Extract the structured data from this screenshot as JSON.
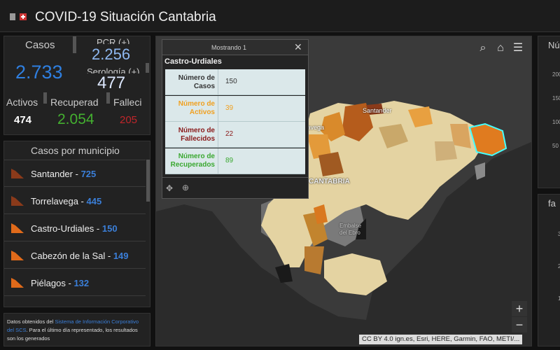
{
  "header": {
    "title": "COVID-19 Situación Cantabria"
  },
  "summary": {
    "casos": {
      "label": "Casos",
      "value": "2.733"
    },
    "pcr": {
      "label": "PCR (+)",
      "value": "2.256"
    },
    "serologia": {
      "label": "Serología (+)",
      "value": "477"
    },
    "activos": {
      "label": "Activos",
      "value": "474"
    },
    "recuperados": {
      "label": "Recuperad",
      "value": "2.054"
    },
    "fallecidos": {
      "label": "Falleci",
      "value": "205"
    }
  },
  "municipios": {
    "title": "Casos por municipio",
    "items": [
      {
        "name": "Santander -",
        "value": "725"
      },
      {
        "name": "Torrelavega -",
        "value": "445"
      },
      {
        "name": "Castro-Urdiales -",
        "value": "150"
      },
      {
        "name": "Cabezón de la Sal -",
        "value": "149"
      },
      {
        "name": "Piélagos -",
        "value": "132"
      }
    ]
  },
  "footer": {
    "text_before": "Datos obtenidos del ",
    "link": "Sistema de Información Corporativo del SCS",
    "text_after": ". Para el último día representado, los resultados son los generados"
  },
  "popup": {
    "header": "Mostrando 1",
    "title": "Castro-Urdiales",
    "rows": [
      {
        "label": "Número de Casos",
        "value": "150"
      },
      {
        "label": "Número de Activos",
        "value": "39"
      },
      {
        "label": "Número de Fallecidos",
        "value": "22"
      },
      {
        "label": "Número de Recuperados",
        "value": "89"
      }
    ]
  },
  "map": {
    "labels": [
      "Santander",
      "Torrelavega",
      "CANTABRIA",
      "Embalse del Ebro"
    ],
    "attribution": "CC BY 4.0 ign.es, Esri, HERE, Garmin, FAO, METI/..."
  },
  "right_panels": [
    {
      "title": "Nú",
      "ticks": [
        "200",
        "150",
        "100",
        "50"
      ]
    },
    {
      "title": "fa",
      "ticks": [
        "3",
        "2",
        "1"
      ]
    }
  ]
}
